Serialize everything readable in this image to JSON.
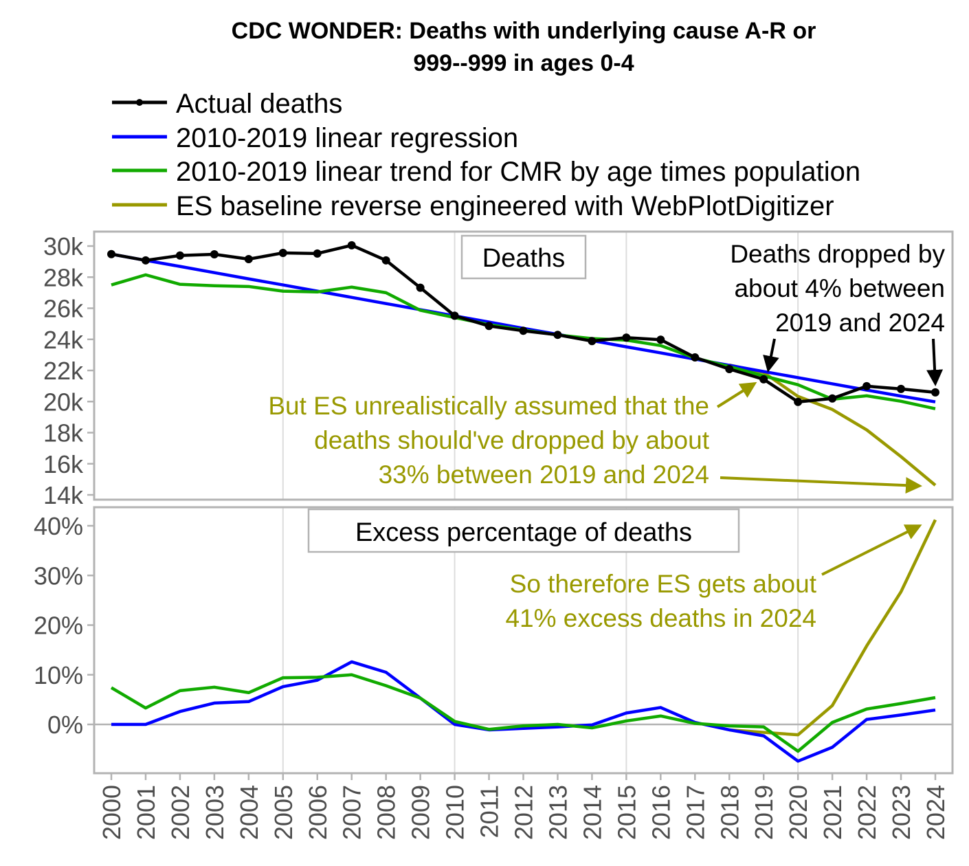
{
  "chart_data": {
    "type": "line",
    "title": "CDC WONDER: Deaths with underlying cause A-R or 999--999 in ages 0-4",
    "title_lines": [
      "CDC WONDER: Deaths with underlying cause A-R or",
      "999--999 in ages 0-4"
    ],
    "x": [
      2000,
      2001,
      2002,
      2003,
      2004,
      2005,
      2006,
      2007,
      2008,
      2009,
      2010,
      2011,
      2012,
      2013,
      2014,
      2015,
      2016,
      2017,
      2018,
      2019,
      2020,
      2021,
      2022,
      2023,
      2024
    ],
    "xlabel": "",
    "legend": {
      "placement": "top-left",
      "entries": [
        {
          "key": "actual",
          "label": "Actual deaths",
          "color": "#000000",
          "marker": "dot"
        },
        {
          "key": "regression",
          "label": "2010-2019 linear regression",
          "color": "#0000ff",
          "marker": "none"
        },
        {
          "key": "cmr",
          "label": "2010-2019 linear trend for CMR by age times population",
          "color": "#11aa00",
          "marker": "none"
        },
        {
          "key": "es",
          "label": "ES baseline reverse engineered with WebPlotDigitizer",
          "color": "#999900",
          "marker": "none"
        }
      ]
    },
    "panels": [
      {
        "label": "Deaths",
        "ylim": [
          14000,
          30400
        ],
        "yticks": [
          14000,
          16000,
          18000,
          20000,
          22000,
          24000,
          26000,
          28000,
          30000
        ],
        "ytick_labels": [
          "14k",
          "16k",
          "18k",
          "20k",
          "22k",
          "24k",
          "26k",
          "28k",
          "30k"
        ],
        "grid": "vertical-major",
        "series": [
          {
            "key": "actual",
            "name": "Actual deaths",
            "start_year": 2000,
            "values": [
              29480,
              29080,
              29390,
              29470,
              29160,
              29560,
              29520,
              30050,
              29080,
              27320,
              25520,
              24860,
              24550,
              24290,
              23890,
              24110,
              23980,
              22840,
              22090,
              21430,
              19980,
              20200,
              20990,
              20810,
              20590
            ]
          },
          {
            "key": "regression",
            "name": "2010-2019 linear regression",
            "start_year": 2000,
            "values": [
              29480,
              29080,
              28690,
              28290,
              27890,
              27500,
              27100,
              26700,
              26300,
              25910,
              25510,
              25110,
              24710,
              24320,
              23920,
              23520,
              23130,
              22730,
              22330,
              21930,
              21540,
              21140,
              20740,
              20350,
              19980
            ]
          },
          {
            "key": "cmr",
            "name": "2010-2019 linear trend for CMR by age times population",
            "start_year": 2000,
            "values": [
              27500,
              28150,
              27540,
              27450,
              27400,
              27100,
              27050,
              27360,
              27000,
              25870,
              25400,
              24950,
              24600,
              24280,
              24050,
              23950,
              23600,
              22800,
              22250,
              21650,
              21080,
              20150,
              20370,
              20020,
              19540
            ]
          },
          {
            "key": "es",
            "name": "ES baseline reverse engineered with WebPlotDigitizer",
            "start_year": 2018,
            "values": [
              22350,
              21870,
              20330,
              19490,
              18180,
              16460,
              14620
            ]
          }
        ]
      },
      {
        "label": "Excess percentage of deaths",
        "ylim": [
          -9.8,
          41.5
        ],
        "yticks": [
          0,
          10,
          20,
          30,
          40
        ],
        "ytick_labels": [
          "0%",
          "10%",
          "20%",
          "30%",
          "40%"
        ],
        "zero_line": true,
        "grid": "vertical-major",
        "series": [
          {
            "key": "regression",
            "name": "2010-2019 linear regression",
            "start_year": 2000,
            "values": [
              0.0,
              0.0,
              2.6,
              4.3,
              4.6,
              7.6,
              8.9,
              12.6,
              10.5,
              5.3,
              0.0,
              -1.1,
              -0.8,
              -0.5,
              -0.1,
              2.3,
              3.4,
              0.4,
              -1.1,
              -2.3,
              -7.4,
              -4.6,
              1.0,
              1.9,
              2.9
            ]
          },
          {
            "key": "cmr",
            "name": "2010-2019 linear trend for CMR by age times population",
            "start_year": 2000,
            "values": [
              7.4,
              3.3,
              6.8,
              7.5,
              6.4,
              9.4,
              9.5,
              10.0,
              7.8,
              5.3,
              0.6,
              -1.0,
              -0.3,
              0.0,
              -0.7,
              0.7,
              1.7,
              0.2,
              -0.3,
              -0.5,
              -5.4,
              0.4,
              3.1,
              4.2,
              5.4
            ]
          },
          {
            "key": "es",
            "name": "ES baseline reverse engineered with WebPlotDigitizer",
            "start_year": 2018,
            "values": [
              -1.1,
              -1.6,
              -2.1,
              3.8,
              15.8,
              26.7,
              41.2
            ]
          }
        ]
      }
    ],
    "annotations": [
      {
        "panel": 0,
        "lines": [
          "Deaths dropped by",
          "about 4% between",
          "2019 and 2024"
        ],
        "color": "#000000",
        "arrows_to": [
          {
            "year": 2019,
            "value": 21900
          },
          {
            "year": 2024,
            "value": 20600
          }
        ]
      },
      {
        "panel": 0,
        "lines": [
          "But ES unrealistically assumed that the",
          "deaths should've dropped by about",
          "33% between 2019 and 2024"
        ],
        "color": "#999900",
        "arrows_to": [
          {
            "year": 2019,
            "value": 21700
          },
          {
            "year": 2024,
            "value": 14600
          }
        ]
      },
      {
        "panel": 1,
        "lines": [
          "So therefore ES gets about",
          "41% excess deaths in 2024"
        ],
        "color": "#999900",
        "arrows_to": [
          {
            "year": 2024,
            "value": 41.2
          }
        ]
      }
    ]
  },
  "colors": {
    "panel_border": "#b3b3b3",
    "grid": "#dddddd",
    "zero_line": "#b3b3b3",
    "tick_text": "#4d4d4d"
  }
}
